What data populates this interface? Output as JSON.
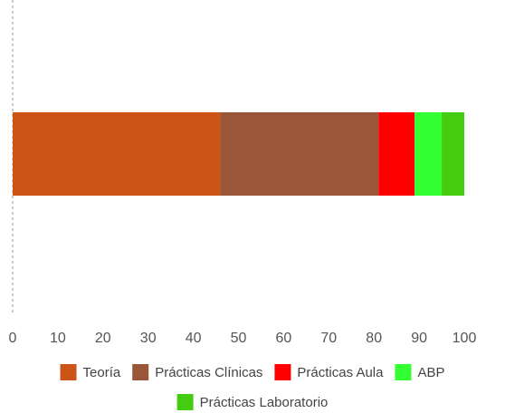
{
  "chart_data": {
    "type": "bar",
    "orientation": "horizontal",
    "stacked": true,
    "categories": [
      ""
    ],
    "series": [
      {
        "name": "Teoría",
        "values": [
          46
        ],
        "color": "#cc5417"
      },
      {
        "name": "Prácticas Clínicas",
        "values": [
          35
        ],
        "color": "#9a5639"
      },
      {
        "name": "Prácticas Aula",
        "values": [
          8
        ],
        "color": "#ff0000"
      },
      {
        "name": "ABP",
        "values": [
          6
        ],
        "color": "#33ff33"
      },
      {
        "name": "Prácticas Laboratorio",
        "values": [
          5
        ],
        "color": "#44cc11"
      }
    ],
    "xlim": [
      0,
      100
    ],
    "xticks": [
      0,
      10,
      20,
      30,
      40,
      50,
      60,
      70,
      80,
      90,
      100
    ],
    "xtick_labels": [
      "0",
      "10",
      "20",
      "30",
      "40",
      "50",
      "60",
      "70",
      "80",
      "90",
      "100"
    ],
    "title": "",
    "xlabel": "",
    "ylabel": "",
    "grid": false,
    "legend_position": "bottom"
  }
}
